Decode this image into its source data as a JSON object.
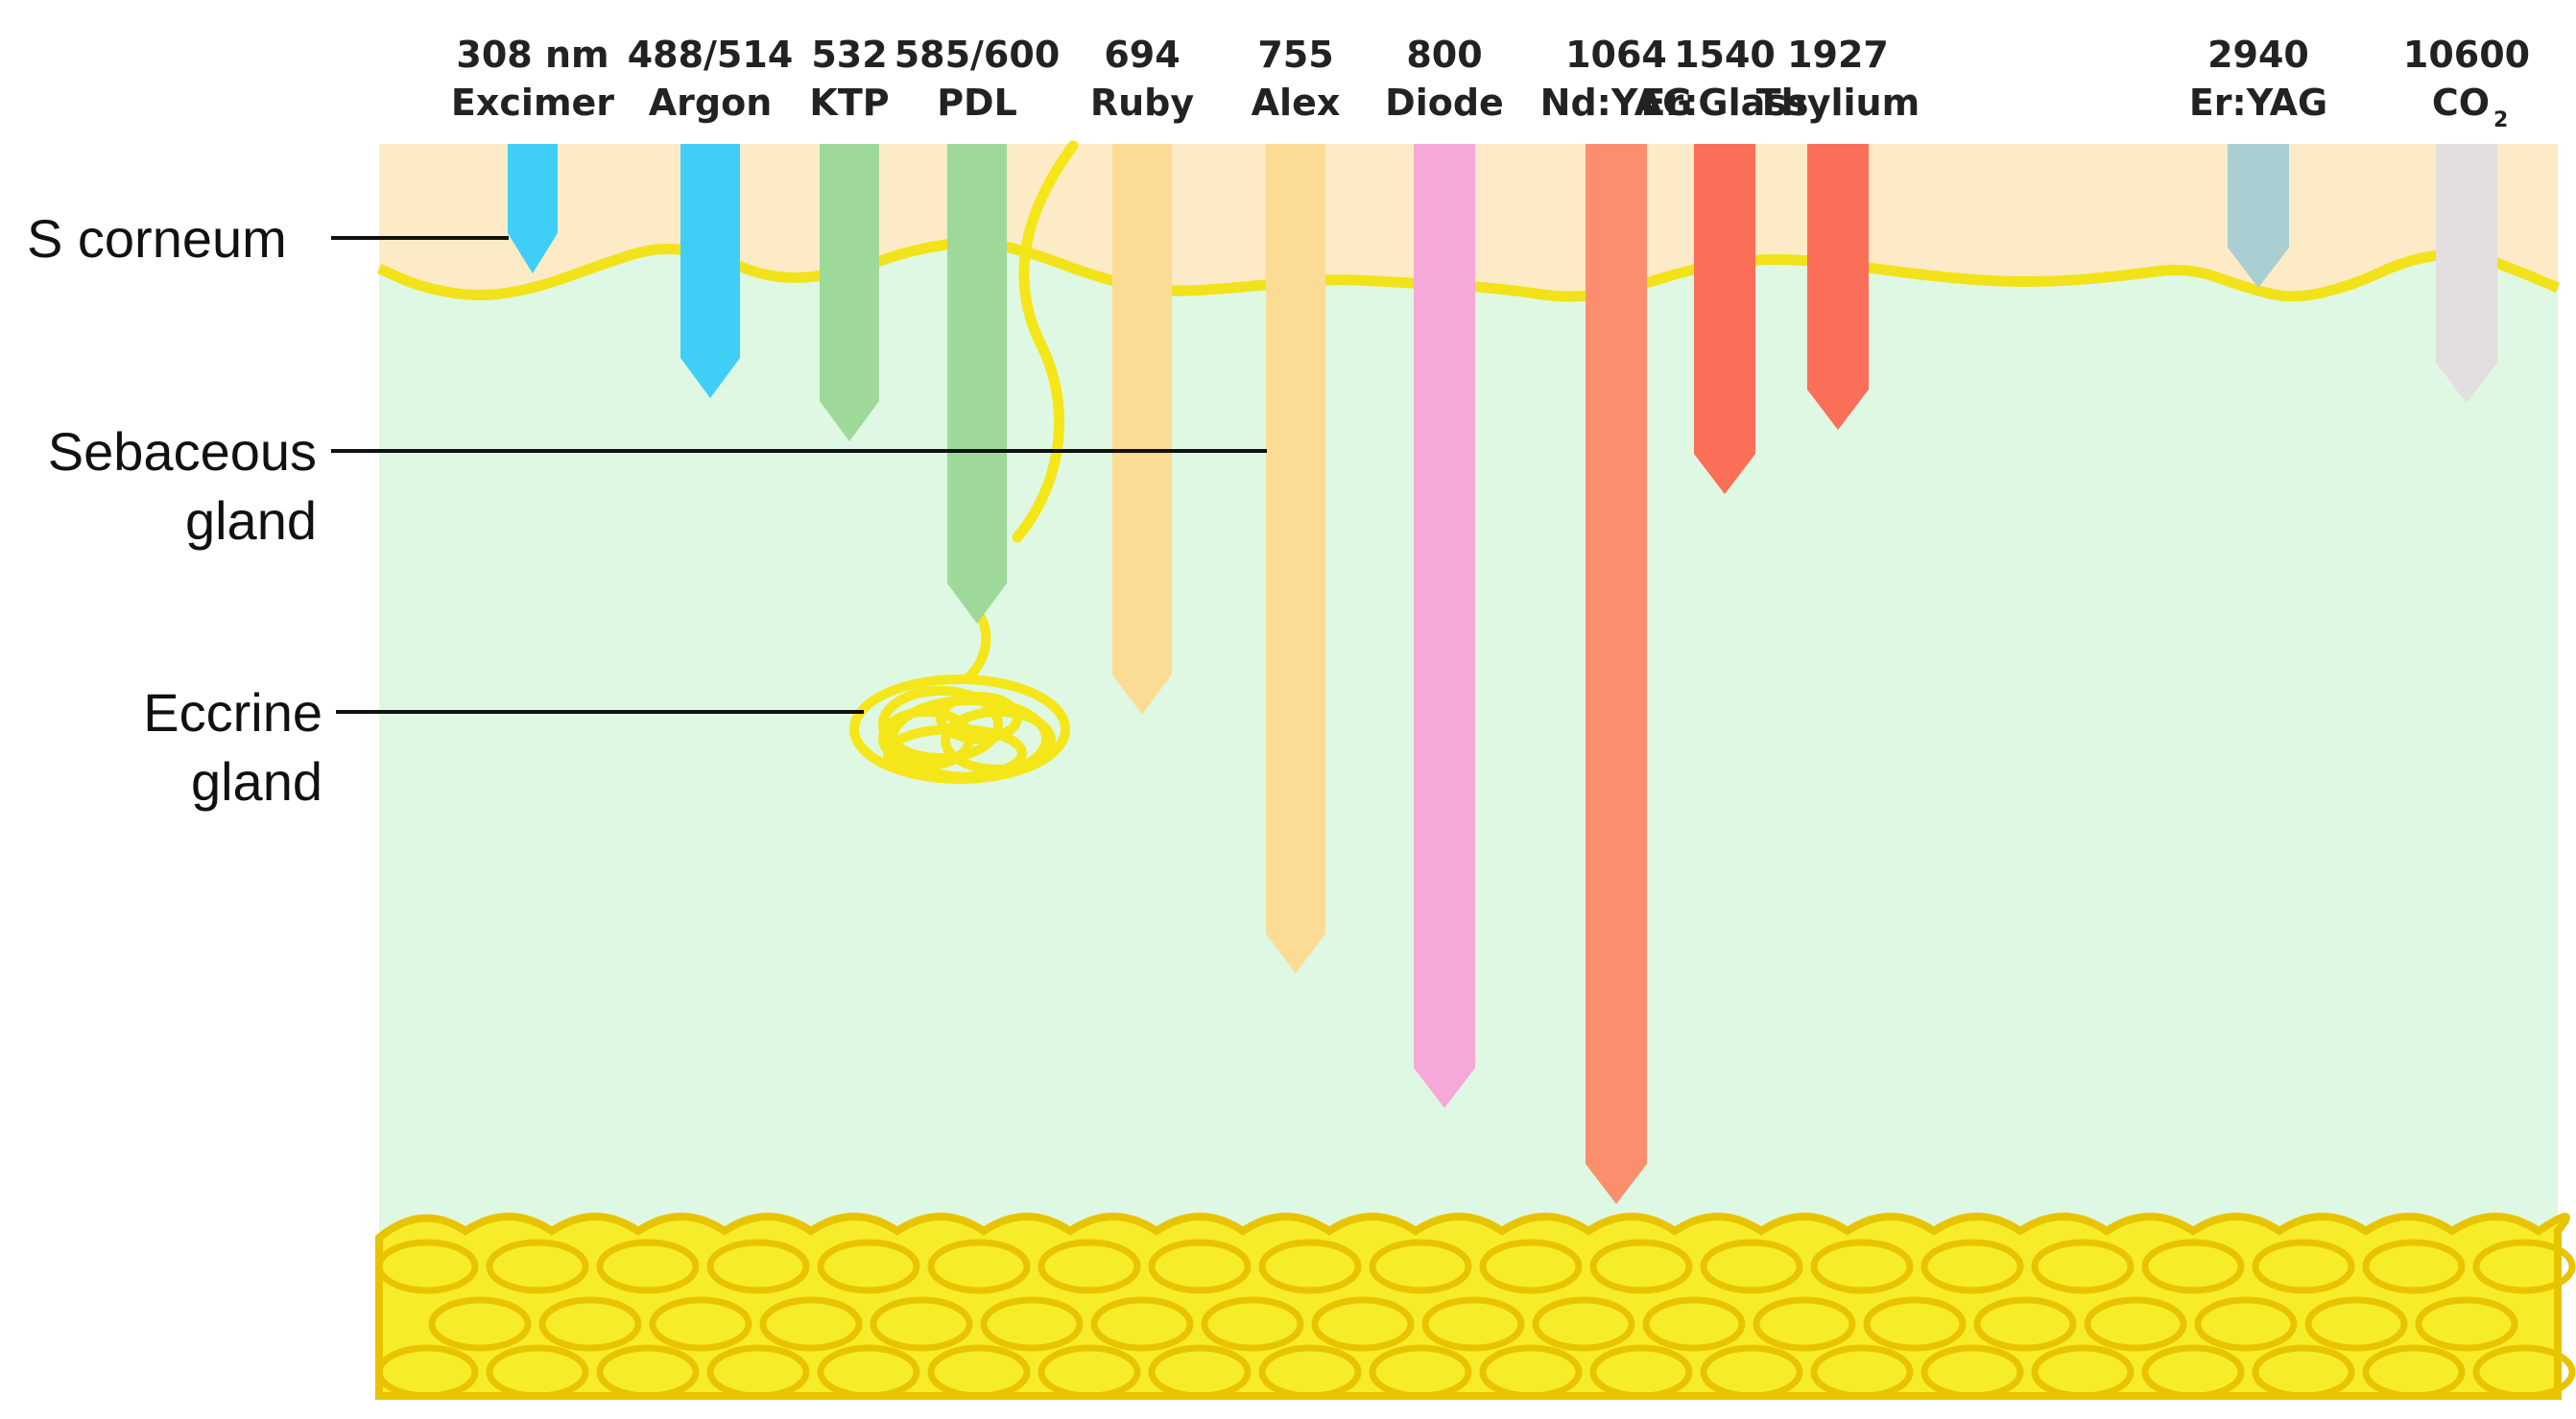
{
  "colors": {
    "epidermis": "#FDEBC8",
    "dermis": "#DFF8E3",
    "junction": "#F2E21A",
    "gland": "#F5E61A",
    "fat": "#F7EC2A",
    "fat_outline": "#E8C400"
  },
  "lasers": [
    {
      "wavelength": "308 nm",
      "name": "Excimer",
      "color": "#3FCFF6"
    },
    {
      "wavelength": "488/514",
      "name": "Argon",
      "color": "#3FCFF6"
    },
    {
      "wavelength": "532",
      "name": "KTP",
      "color": "#9ED99A"
    },
    {
      "wavelength": "585/600",
      "name": "PDL",
      "color": "#9ED99A"
    },
    {
      "wavelength": "694",
      "name": "Ruby",
      "color": "#FCDC95"
    },
    {
      "wavelength": "755",
      "name": "Alex",
      "color": "#FCDC95"
    },
    {
      "wavelength": "800",
      "name": "Diode",
      "color": "#F6A9D8"
    },
    {
      "wavelength": "1064",
      "name": "Nd:YAG",
      "color": "#FB8E6D"
    },
    {
      "wavelength": "1540",
      "name": "Er:Glass",
      "color": "#FB6E57"
    },
    {
      "wavelength": "1927",
      "name": "Thylium",
      "color": "#FB6E57"
    },
    {
      "wavelength": "2940",
      "name": "Er:YAG",
      "color": "#A9CFD2"
    },
    {
      "wavelength": "10600",
      "name": "CO",
      "name_sub": "2",
      "color": "#E3DEDF"
    }
  ],
  "structures": [
    {
      "line1": "S corneum",
      "line2": ""
    },
    {
      "line1": "Sebaceous",
      "line2": "gland"
    },
    {
      "line1": "Eccrine",
      "line2": "gland"
    }
  ]
}
